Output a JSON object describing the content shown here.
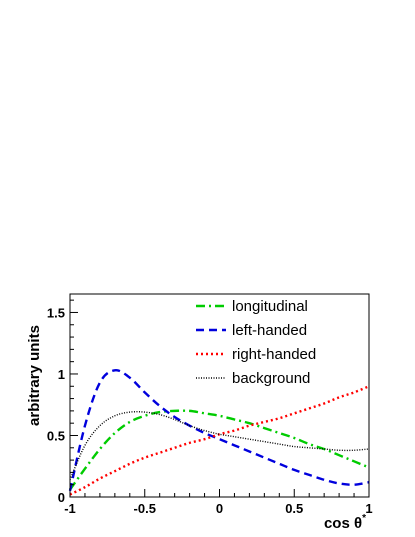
{
  "chart_data": {
    "type": "line",
    "xlabel": "cos θ",
    "xlabel_superscript": "*",
    "ylabel": "arbitrary units",
    "xlim": [
      -1,
      1
    ],
    "ylim": [
      0,
      1.65
    ],
    "x_ticks": [
      -1,
      -0.5,
      0,
      0.5,
      1
    ],
    "x_tick_labels": [
      "-1",
      "-0.5",
      "0",
      "0.5",
      "1"
    ],
    "y_ticks": [
      0,
      0.5,
      1,
      1.5
    ],
    "y_tick_labels": [
      "0",
      "0.5",
      "1",
      "1.5"
    ],
    "grid": false,
    "legend_position": "top-right",
    "x": [
      -1,
      -0.9,
      -0.8,
      -0.7,
      -0.6,
      -0.5,
      -0.4,
      -0.3,
      -0.2,
      -0.1,
      0,
      0.1,
      0.2,
      0.3,
      0.4,
      0.5,
      0.6,
      0.7,
      0.8,
      0.9,
      1
    ],
    "series": [
      {
        "name": "longitudinal",
        "color": "#00cc00",
        "dash": "dash-dot",
        "values": [
          0.06,
          0.23,
          0.39,
          0.52,
          0.61,
          0.66,
          0.69,
          0.7,
          0.7,
          0.68,
          0.66,
          0.63,
          0.6,
          0.56,
          0.52,
          0.48,
          0.43,
          0.39,
          0.34,
          0.29,
          0.24
        ]
      },
      {
        "name": "left-handed",
        "color": "#0000dd",
        "dash": "dashed",
        "values": [
          0.05,
          0.58,
          0.93,
          1.03,
          0.97,
          0.85,
          0.74,
          0.65,
          0.58,
          0.52,
          0.47,
          0.42,
          0.37,
          0.32,
          0.27,
          0.22,
          0.18,
          0.14,
          0.11,
          0.1,
          0.12
        ]
      },
      {
        "name": "right-handed",
        "color": "#ff0000",
        "dash": "dotted",
        "values": [
          0.02,
          0.08,
          0.15,
          0.21,
          0.27,
          0.32,
          0.36,
          0.4,
          0.44,
          0.47,
          0.51,
          0.54,
          0.58,
          0.61,
          0.64,
          0.68,
          0.72,
          0.76,
          0.81,
          0.85,
          0.9
        ]
      },
      {
        "name": "background",
        "color": "#000000",
        "dash": "fine-dotted",
        "values": [
          0.14,
          0.42,
          0.58,
          0.66,
          0.69,
          0.69,
          0.67,
          0.63,
          0.58,
          0.54,
          0.51,
          0.49,
          0.47,
          0.45,
          0.43,
          0.41,
          0.4,
          0.39,
          0.38,
          0.38,
          0.39
        ]
      }
    ]
  }
}
